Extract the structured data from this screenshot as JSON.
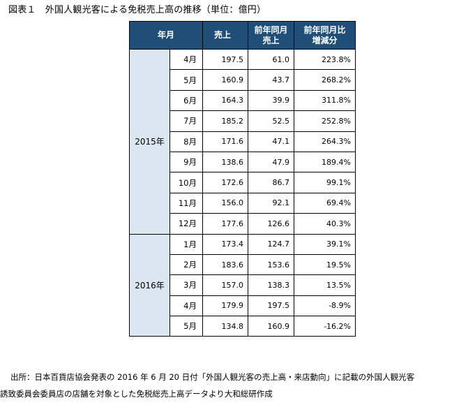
{
  "title": "図表１　外国人観光客による免税売上高の推移（単位：億円）",
  "table": {
    "headers": {
      "period": "年月",
      "sales": "売上",
      "prev_line1": "前年同月",
      "prev_line2": "売上",
      "ratio_line1": "前年同月比",
      "ratio_line2": "増減分"
    },
    "groups": [
      {
        "year": "2015年",
        "rows": [
          {
            "month": "4月",
            "sales": "197.5",
            "prev": "61.0",
            "ratio": "223.8%"
          },
          {
            "month": "5月",
            "sales": "160.9",
            "prev": "43.7",
            "ratio": "268.2%"
          },
          {
            "month": "6月",
            "sales": "164.3",
            "prev": "39.9",
            "ratio": "311.8%"
          },
          {
            "month": "7月",
            "sales": "185.2",
            "prev": "52.5",
            "ratio": "252.8%"
          },
          {
            "month": "8月",
            "sales": "171.6",
            "prev": "47.1",
            "ratio": "264.3%"
          },
          {
            "month": "9月",
            "sales": "138.6",
            "prev": "47.9",
            "ratio": "189.4%"
          },
          {
            "month": "10月",
            "sales": "172.6",
            "prev": "86.7",
            "ratio": "99.1%"
          },
          {
            "month": "11月",
            "sales": "156.0",
            "prev": "92.1",
            "ratio": "69.4%"
          },
          {
            "month": "12月",
            "sales": "177.6",
            "prev": "126.6",
            "ratio": "40.3%"
          }
        ]
      },
      {
        "year": "2016年",
        "rows": [
          {
            "month": "1月",
            "sales": "173.4",
            "prev": "124.7",
            "ratio": "39.1%"
          },
          {
            "month": "2月",
            "sales": "183.6",
            "prev": "153.6",
            "ratio": "19.5%"
          },
          {
            "month": "3月",
            "sales": "157.0",
            "prev": "138.3",
            "ratio": "13.5%"
          },
          {
            "month": "4月",
            "sales": "179.9",
            "prev": "197.5",
            "ratio": "-8.9%"
          },
          {
            "month": "5月",
            "sales": "134.8",
            "prev": "160.9",
            "ratio": "-16.2%"
          }
        ]
      }
    ]
  },
  "footnote": {
    "line1": "出所：日本百貨店協会発表の 2016 年 6 月 20 日付「外国人観光客の売上高・来店動向」に記載の外国人観光客",
    "line2": "誘致委員会委員店の店舗を対象とした免税総売上高データより大和総研作成"
  },
  "colors": {
    "header_bg": "#1f4e79",
    "header_text": "#ffffff",
    "year_bg": "#dce6f1"
  }
}
